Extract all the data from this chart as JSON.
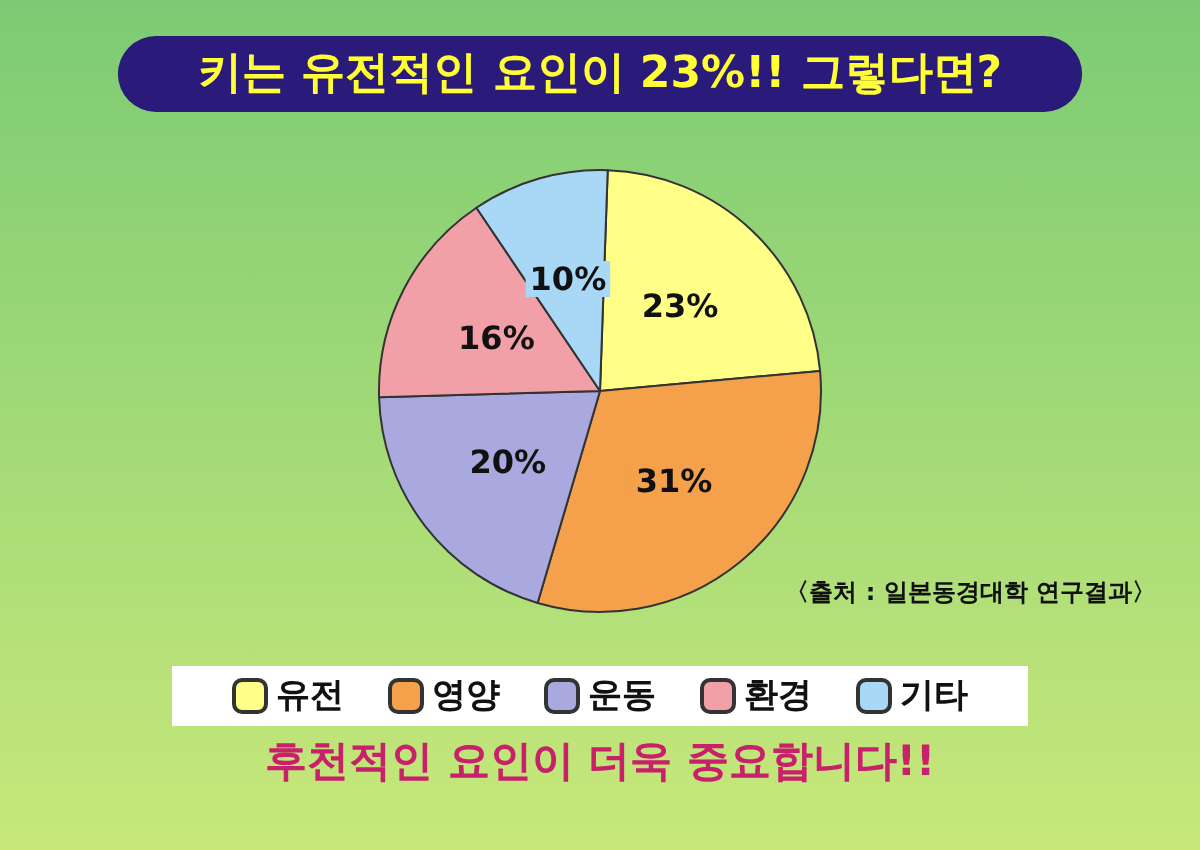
{
  "chart_data": {
    "type": "pie",
    "title": "키는 유전적인 요인이 23%!! 그렇다면?",
    "categories": [
      "유전",
      "영양",
      "운동",
      "환경",
      "기타"
    ],
    "values": [
      23,
      31,
      20,
      16,
      10
    ],
    "colors": [
      "#ffff88",
      "#f5a04a",
      "#a9a9e0",
      "#f2a0a8",
      "#a8d8f5"
    ],
    "value_labels": [
      "23%",
      "31%",
      "20%",
      "16%",
      "10%"
    ],
    "legend": "bottom",
    "annotations": [
      "〈출처 : 일본동경대학 연구결과〉",
      "후천적인 요인이 더욱 중요합니다!!"
    ]
  }
}
